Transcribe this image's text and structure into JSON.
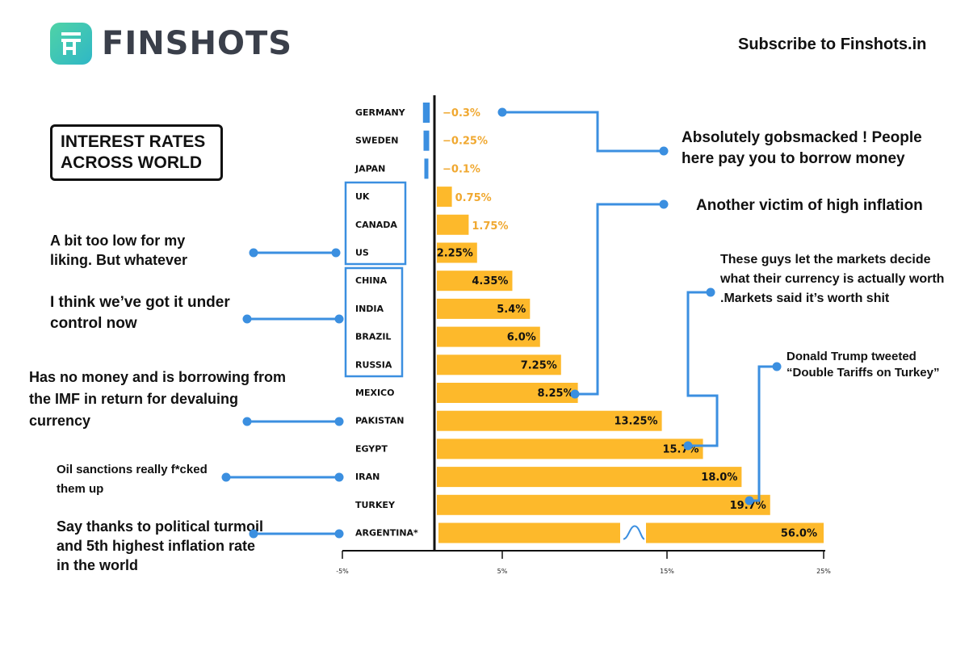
{
  "header": {
    "brand": "FINSHOTS",
    "subscribe": "Subscribe to Finshots.in"
  },
  "colors": {
    "bar": "#FDB92B",
    "negative_bar": "#3B8FE0",
    "connector": "#3B8FE0",
    "axis": "#111111",
    "value_text_outside": "#F0A830"
  },
  "chart_data": {
    "type": "bar",
    "orientation": "horizontal",
    "title": "INTEREST RATES ACROSS WORLD",
    "categories": [
      "GERMANY",
      "SWEDEN",
      "JAPAN",
      "UK",
      "CANADA",
      "US",
      "CHINA",
      "INDIA",
      "BRAZIL",
      "RUSSIA",
      "MEXICO",
      "PAKISTAN",
      "EGYPT",
      "IRAN",
      "TURKEY",
      "ARGENTINA*"
    ],
    "values": [
      -0.3,
      -0.25,
      -0.1,
      0.75,
      1.75,
      2.25,
      4.35,
      5.4,
      6.0,
      7.25,
      8.25,
      13.25,
      15.7,
      18.0,
      19.7,
      56.0
    ],
    "value_labels": [
      "−0.3%",
      "−0.25%",
      "−0.1%",
      "0.75%",
      "1.75%",
      "2.25%",
      "4.35%",
      "5.4%",
      "6.0%",
      "7.25%",
      "8.25%",
      "13.25%",
      "15.7%",
      "18.0%",
      "19.7%",
      "56.0%"
    ],
    "x_ticks": [
      "-5%",
      "5%",
      "15%",
      "25%"
    ],
    "axis_break": "ARGENTINA*"
  },
  "notes": {
    "germany": "Absolutely gobsmacked ! People here pay you to borrow money",
    "mexico": "Another victim of high inflation",
    "egypt": "These guys let the markets decide what their currency is actually worth .Markets said it’s worth shit",
    "turkey": "Donald Trump tweeted “Double Tariffs on Turkey”",
    "us_group": "A bit too low for my liking. But whatever",
    "brics_group": "I think we’ve got it under control now",
    "pakistan": "Has no money and is borrowing from the IMF in return for devaluing currency",
    "iran": "Oil sanctions really f*cked them up",
    "argentina": "Say thanks to political turmoil and 5th highest inflation rate in the world"
  }
}
